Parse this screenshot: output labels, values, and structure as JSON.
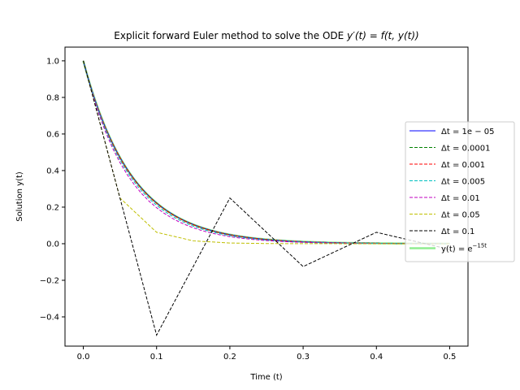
{
  "chart_data": {
    "type": "line",
    "title_prefix": "Explicit forward Euler method to solve the ODE ",
    "title_math": "y′(t) = f(t, y(t))",
    "xlabel": "Time (t)",
    "ylabel": "Solution y(t)",
    "xlim": [
      -0.025,
      0.525
    ],
    "ylim": [
      -0.56,
      1.075
    ],
    "x_ticks": [
      0.0,
      0.1,
      0.2,
      0.3,
      0.4,
      0.5
    ],
    "x_tick_labels": [
      "0.0",
      "0.1",
      "0.2",
      "0.3",
      "0.4",
      "0.5"
    ],
    "y_ticks": [
      -0.4,
      -0.2,
      0.0,
      0.2,
      0.4,
      0.6,
      0.8,
      1.0
    ],
    "y_tick_labels": [
      "−0.4",
      "−0.2",
      "0.0",
      "0.2",
      "0.4",
      "0.6",
      "0.8",
      "1.0"
    ],
    "legend_position": "center-right",
    "ode_rate": 15,
    "t_end": 0.5,
    "series": [
      {
        "name_prefix": "Δt = ",
        "name_value": "1e − 05",
        "dt": 1e-05,
        "color": "#0000ff",
        "dashed": false
      },
      {
        "name_prefix": "Δt = ",
        "name_value": "0.0001",
        "dt": 0.0001,
        "color": "#008000",
        "dashed": true
      },
      {
        "name_prefix": "Δt = ",
        "name_value": "0.001",
        "dt": 0.001,
        "color": "#ff0000",
        "dashed": true
      },
      {
        "name_prefix": "Δt = ",
        "name_value": "0.005",
        "dt": 0.005,
        "color": "#00bfbf",
        "dashed": true
      },
      {
        "name_prefix": "Δt = ",
        "name_value": "0.01",
        "dt": 0.01,
        "color": "#bf00bf",
        "dashed": true
      },
      {
        "name_prefix": "Δt = ",
        "name_value": "0.05",
        "dt": 0.05,
        "color": "#bfbf00",
        "dashed": true
      },
      {
        "name_prefix": "Δt = ",
        "name_value": "0.1",
        "dt": 0.1,
        "color": "#000000",
        "dashed": true
      }
    ],
    "exact": {
      "name_prefix": "y(t) = e",
      "name_exp": "−15t",
      "color": "#90ee90"
    }
  }
}
